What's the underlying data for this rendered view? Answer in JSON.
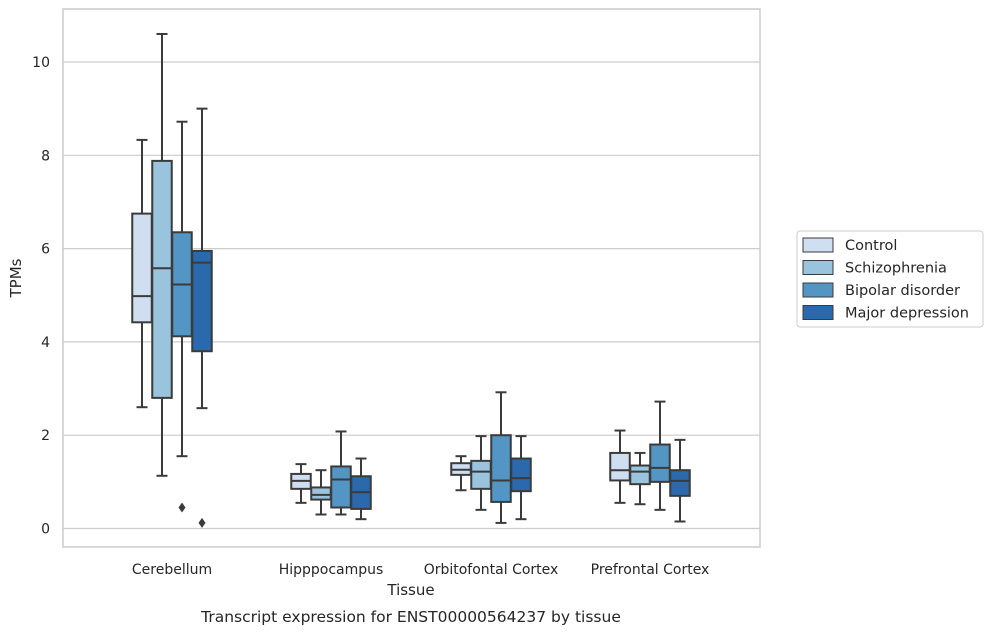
{
  "chart_data": {
    "type": "box",
    "title": "Transcript expression for ENST00000564237 by tissue",
    "xlabel": "Tissue",
    "ylabel": "TPMs",
    "ylim": [
      -0.4,
      11.2
    ],
    "yticks": [
      0,
      2,
      4,
      6,
      8,
      10
    ],
    "grid": "horizontal",
    "legend_position": "right",
    "categories": [
      "Cerebellum",
      "Hipppocampus",
      "Orbitofontal Cortex",
      "Prefrontal Cortex"
    ],
    "series": [
      {
        "name": "Control",
        "color": "#cfdef0",
        "boxes": [
          {
            "whisker_low": 2.6,
            "q1": 4.42,
            "median": 4.98,
            "q3": 6.75,
            "whisker_high": 8.33,
            "outliers": []
          },
          {
            "whisker_low": 0.55,
            "q1": 0.85,
            "median": 1.02,
            "q3": 1.17,
            "whisker_high": 1.38,
            "outliers": []
          },
          {
            "whisker_low": 0.82,
            "q1": 1.15,
            "median": 1.26,
            "q3": 1.4,
            "whisker_high": 1.55,
            "outliers": []
          },
          {
            "whisker_low": 0.55,
            "q1": 1.03,
            "median": 1.25,
            "q3": 1.62,
            "whisker_high": 2.1,
            "outliers": []
          }
        ]
      },
      {
        "name": "Schizophrenia",
        "color": "#9ac3de",
        "boxes": [
          {
            "whisker_low": 1.13,
            "q1": 2.8,
            "median": 5.58,
            "q3": 7.88,
            "whisker_high": 10.6,
            "outliers": []
          },
          {
            "whisker_low": 0.3,
            "q1": 0.62,
            "median": 0.72,
            "q3": 0.88,
            "whisker_high": 1.25,
            "outliers": []
          },
          {
            "whisker_low": 0.4,
            "q1": 0.85,
            "median": 1.22,
            "q3": 1.45,
            "whisker_high": 1.98,
            "outliers": []
          },
          {
            "whisker_low": 0.52,
            "q1": 0.95,
            "median": 1.22,
            "q3": 1.35,
            "whisker_high": 1.62,
            "outliers": []
          }
        ]
      },
      {
        "name": "Bipolar disorder",
        "color": "#5396c4",
        "boxes": [
          {
            "whisker_low": 1.55,
            "q1": 4.12,
            "median": 5.23,
            "q3": 6.35,
            "whisker_high": 8.72,
            "outliers": [
              0.45
            ]
          },
          {
            "whisker_low": 0.3,
            "q1": 0.45,
            "median": 1.05,
            "q3": 1.33,
            "whisker_high": 2.08,
            "outliers": []
          },
          {
            "whisker_low": 0.12,
            "q1": 0.57,
            "median": 1.03,
            "q3": 2.0,
            "whisker_high": 2.92,
            "outliers": []
          },
          {
            "whisker_low": 0.4,
            "q1": 1.0,
            "median": 1.3,
            "q3": 1.8,
            "whisker_high": 2.72,
            "outliers": []
          }
        ]
      },
      {
        "name": "Major depression",
        "color": "#2a69ab",
        "boxes": [
          {
            "whisker_low": 2.58,
            "q1": 3.8,
            "median": 5.7,
            "q3": 5.95,
            "whisker_high": 9.0,
            "outliers": [
              0.12
            ]
          },
          {
            "whisker_low": 0.2,
            "q1": 0.42,
            "median": 0.78,
            "q3": 1.12,
            "whisker_high": 1.5,
            "outliers": []
          },
          {
            "whisker_low": 0.2,
            "q1": 0.8,
            "median": 1.08,
            "q3": 1.5,
            "whisker_high": 1.98,
            "outliers": []
          },
          {
            "whisker_low": 0.15,
            "q1": 0.7,
            "median": 1.02,
            "q3": 1.25,
            "whisker_high": 1.9,
            "outliers": []
          }
        ]
      }
    ]
  }
}
